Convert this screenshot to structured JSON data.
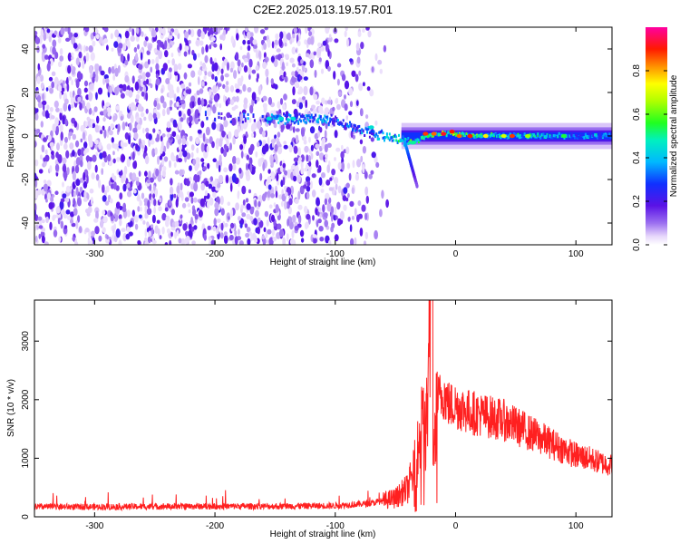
{
  "title": "C2E2.2025.013.19.57.R01",
  "chart_data": [
    {
      "type": "heatmap",
      "xlabel": "Height of straight line (km)",
      "ylabel": "Frequency (Hz)",
      "xlim": [
        -350,
        130
      ],
      "ylim": [
        -50,
        50
      ],
      "xticks": [
        -300,
        -200,
        -100,
        0,
        100
      ],
      "yticks": [
        -40,
        -20,
        0,
        20,
        40
      ],
      "colorbar": {
        "label": "Normalized spectral amplitude",
        "range": [
          0.0,
          1.0
        ],
        "ticks": [
          0.0,
          0.2,
          0.4,
          0.6,
          0.8
        ],
        "colormap": "rainbow (violet-blue-cyan-green-yellow-red-magenta)"
      },
      "ridge": {
        "x": [
          -210,
          -150,
          -120,
          -100,
          -80,
          -60,
          -45,
          -35,
          -25,
          -10,
          0,
          20,
          50,
          80,
          130
        ],
        "frequency": [
          9,
          8,
          8,
          7,
          3,
          0,
          -2,
          -3,
          0,
          1,
          1,
          0,
          0,
          0,
          0
        ],
        "amplitude": [
          0.3,
          0.4,
          0.45,
          0.35,
          0.4,
          0.45,
          0.55,
          0.6,
          0.7,
          0.8,
          0.75,
          0.6,
          0.55,
          0.5,
          0.45
        ]
      }
    },
    {
      "type": "line",
      "xlabel": "Height of straight line (km)",
      "ylabel": "SNR (10 * v/v)",
      "xlim": [
        -350,
        130
      ],
      "ylim": [
        0,
        3700
      ],
      "xticks": [
        -300,
        -200,
        -100,
        0,
        100
      ],
      "yticks": [
        0,
        1000,
        2000,
        3000
      ],
      "series": [
        {
          "color": "#ff2020",
          "x": [
            -350,
            -300,
            -250,
            -200,
            -150,
            -100,
            -70,
            -50,
            -40,
            -35,
            -30,
            -27,
            -25,
            -22,
            -20,
            -18,
            -15,
            -10,
            -5,
            0,
            10,
            20,
            30,
            40,
            50,
            60,
            70,
            80,
            90,
            100,
            110,
            120,
            130
          ],
          "values": [
            170,
            170,
            175,
            180,
            180,
            190,
            230,
            320,
            480,
            750,
            1250,
            2300,
            1100,
            2800,
            3300,
            900,
            2000,
            2100,
            1900,
            1900,
            1800,
            1750,
            1700,
            1650,
            1550,
            1450,
            1350,
            1250,
            1150,
            1050,
            1000,
            930,
            880
          ]
        }
      ]
    }
  ]
}
